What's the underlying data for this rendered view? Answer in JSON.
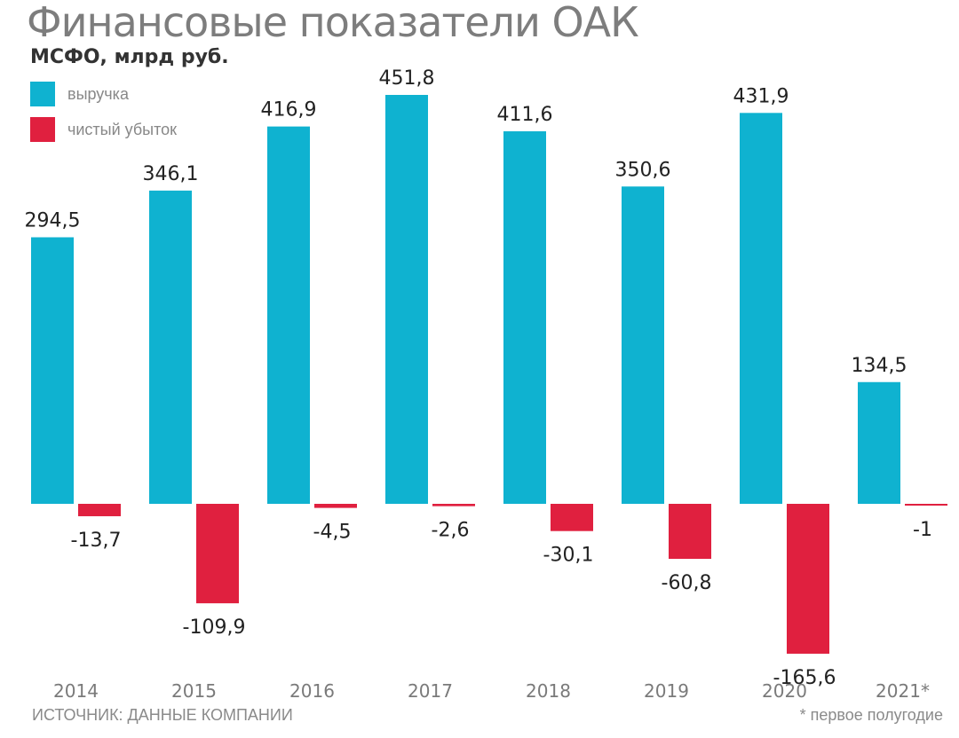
{
  "chart_data": {
    "type": "bar",
    "title": "Финансовые показатели ОАК",
    "subtitle": "МСФО, млрд руб.",
    "categories": [
      "2014",
      "2015",
      "2016",
      "2017",
      "2018",
      "2019",
      "2020",
      "2021*"
    ],
    "series": [
      {
        "name": "выручка",
        "color": "#0fb2d0",
        "values": [
          294.5,
          346.1,
          416.9,
          451.8,
          411.6,
          350.6,
          431.9,
          134.5
        ],
        "labels": [
          "294,5",
          "346,1",
          "416,9",
          "451,8",
          "411,6",
          "350,6",
          "431,9",
          "134,5"
        ]
      },
      {
        "name": "чистый убыток",
        "color": "#e0203f",
        "values": [
          -13.7,
          -109.9,
          -4.5,
          -2.6,
          -30.1,
          -60.8,
          -165.6,
          -1
        ],
        "labels": [
          "-13,7",
          "-109,9",
          "-4,5",
          "-2,6",
          "-30,1",
          "-60,8",
          "-165,6",
          "-1"
        ]
      }
    ],
    "legend_position": "top-left",
    "grid": false
  },
  "footer": {
    "source": "ИСТОЧНИК: ДАННЫЕ КОМПАНИИ",
    "note": "* первое полугодие"
  }
}
